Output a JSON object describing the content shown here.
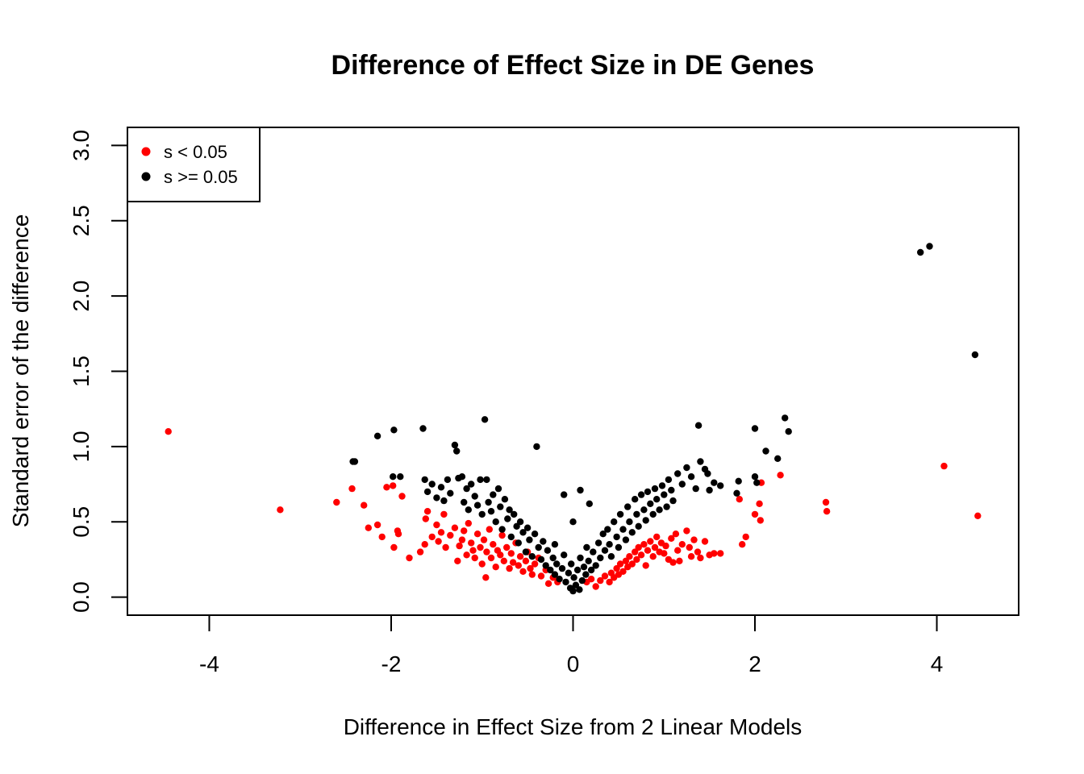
{
  "chart_data": {
    "type": "scatter",
    "title": "Difference of Effect Size in DE Genes",
    "xlabel": "Difference in Effect Size from 2 Linear Models",
    "ylabel": "Standard error of the difference",
    "xlim": [
      -4.9,
      4.9
    ],
    "ylim": [
      -0.12,
      3.12
    ],
    "xticks": [
      -4,
      -2,
      0,
      2,
      4
    ],
    "xtick_labels": [
      "-4",
      "-2",
      "0",
      "2",
      "4"
    ],
    "yticks": [
      0.0,
      0.5,
      1.0,
      1.5,
      2.0,
      2.5,
      3.0
    ],
    "ytick_labels": [
      "0.0",
      "0.5",
      "1.0",
      "1.5",
      "2.0",
      "2.5",
      "3.0"
    ],
    "grid": false,
    "legend": {
      "position": "top-left",
      "entries": [
        {
          "label": "s < 0.05",
          "color": "#ff0000"
        },
        {
          "label": "s >= 0.05",
          "color": "#000000"
        }
      ]
    },
    "series": [
      {
        "name": "s < 0.05",
        "color": "#ff0000",
        "points": [
          [
            -4.45,
            1.1
          ],
          [
            -3.22,
            0.58
          ],
          [
            -2.6,
            0.63
          ],
          [
            -2.43,
            0.72
          ],
          [
            -2.3,
            0.61
          ],
          [
            -2.25,
            0.46
          ],
          [
            -2.15,
            0.48
          ],
          [
            -2.1,
            0.4
          ],
          [
            -2.05,
            0.73
          ],
          [
            -1.98,
            0.74
          ],
          [
            -1.97,
            0.33
          ],
          [
            -1.93,
            0.44
          ],
          [
            -1.92,
            0.42
          ],
          [
            -1.88,
            0.67
          ],
          [
            -1.8,
            0.26
          ],
          [
            -1.68,
            0.3
          ],
          [
            -1.63,
            0.35
          ],
          [
            -1.62,
            0.52
          ],
          [
            -1.6,
            0.57
          ],
          [
            -1.55,
            0.4
          ],
          [
            -1.5,
            0.48
          ],
          [
            -1.48,
            0.37
          ],
          [
            -1.45,
            0.43
          ],
          [
            -1.42,
            0.55
          ],
          [
            -1.4,
            0.33
          ],
          [
            -1.35,
            0.41
          ],
          [
            -1.3,
            0.46
          ],
          [
            -1.27,
            0.24
          ],
          [
            -1.25,
            0.34
          ],
          [
            -1.22,
            0.38
          ],
          [
            -1.2,
            0.44
          ],
          [
            -1.17,
            0.28
          ],
          [
            -1.15,
            0.49
          ],
          [
            -1.12,
            0.36
          ],
          [
            -1.1,
            0.31
          ],
          [
            -1.08,
            0.26
          ],
          [
            -1.05,
            0.42
          ],
          [
            -1.02,
            0.33
          ],
          [
            -1.0,
            0.22
          ],
          [
            -0.98,
            0.38
          ],
          [
            -0.96,
            0.13
          ],
          [
            -0.95,
            0.3
          ],
          [
            -0.92,
            0.45
          ],
          [
            -0.9,
            0.26
          ],
          [
            -0.88,
            0.35
          ],
          [
            -0.85,
            0.2
          ],
          [
            -0.83,
            0.31
          ],
          [
            -0.8,
            0.28
          ],
          [
            -0.78,
            0.41
          ],
          [
            -0.76,
            0.24
          ],
          [
            -0.73,
            0.33
          ],
          [
            -0.7,
            0.19
          ],
          [
            -0.68,
            0.29
          ],
          [
            -0.66,
            0.23
          ],
          [
            -0.63,
            0.36
          ],
          [
            -0.6,
            0.21
          ],
          [
            -0.58,
            0.27
          ],
          [
            -0.55,
            0.17
          ],
          [
            -0.52,
            0.24
          ],
          [
            -0.5,
            0.3
          ],
          [
            -0.47,
            0.19
          ],
          [
            -0.45,
            0.15
          ],
          [
            -0.42,
            0.22
          ],
          [
            -0.38,
            0.26
          ],
          [
            -0.35,
            0.14
          ],
          [
            -0.3,
            0.18
          ],
          [
            -0.27,
            0.09
          ],
          [
            -0.22,
            0.13
          ],
          [
            -0.17,
            0.1
          ],
          [
            0.15,
            0.1
          ],
          [
            0.2,
            0.12
          ],
          [
            0.25,
            0.07
          ],
          [
            0.3,
            0.11
          ],
          [
            0.35,
            0.14
          ],
          [
            0.4,
            0.1
          ],
          [
            0.42,
            0.16
          ],
          [
            0.45,
            0.13
          ],
          [
            0.48,
            0.19
          ],
          [
            0.5,
            0.15
          ],
          [
            0.52,
            0.22
          ],
          [
            0.55,
            0.17
          ],
          [
            0.58,
            0.24
          ],
          [
            0.6,
            0.2
          ],
          [
            0.62,
            0.27
          ],
          [
            0.65,
            0.22
          ],
          [
            0.68,
            0.3
          ],
          [
            0.7,
            0.25
          ],
          [
            0.72,
            0.33
          ],
          [
            0.75,
            0.28
          ],
          [
            0.78,
            0.35
          ],
          [
            0.8,
            0.21
          ],
          [
            0.82,
            0.31
          ],
          [
            0.85,
            0.37
          ],
          [
            0.88,
            0.27
          ],
          [
            0.9,
            0.33
          ],
          [
            0.92,
            0.4
          ],
          [
            0.95,
            0.3
          ],
          [
            0.97,
            0.36
          ],
          [
            1.0,
            0.29
          ],
          [
            1.02,
            0.34
          ],
          [
            1.05,
            0.25
          ],
          [
            1.08,
            0.39
          ],
          [
            1.1,
            0.23
          ],
          [
            1.13,
            0.42
          ],
          [
            1.15,
            0.31
          ],
          [
            1.17,
            0.24
          ],
          [
            1.2,
            0.35
          ],
          [
            1.25,
            0.44
          ],
          [
            1.28,
            0.33
          ],
          [
            1.3,
            0.27
          ],
          [
            1.33,
            0.38
          ],
          [
            1.37,
            0.3
          ],
          [
            1.4,
            0.26
          ],
          [
            1.45,
            0.37
          ],
          [
            1.5,
            0.28
          ],
          [
            1.55,
            0.29
          ],
          [
            1.62,
            0.29
          ],
          [
            1.83,
            0.65
          ],
          [
            1.86,
            0.35
          ],
          [
            1.9,
            0.4
          ],
          [
            2.0,
            0.55
          ],
          [
            2.05,
            0.62
          ],
          [
            2.06,
            0.51
          ],
          [
            2.07,
            0.76
          ],
          [
            2.28,
            0.81
          ],
          [
            2.78,
            0.63
          ],
          [
            2.79,
            0.57
          ],
          [
            4.08,
            0.87
          ],
          [
            4.45,
            0.54
          ]
        ]
      },
      {
        "name": "s >= 0.05",
        "color": "#000000",
        "points": [
          [
            -2.42,
            0.9
          ],
          [
            -2.4,
            0.9
          ],
          [
            -2.15,
            1.07
          ],
          [
            -1.97,
            1.11
          ],
          [
            -1.98,
            0.8
          ],
          [
            -1.9,
            0.8
          ],
          [
            -1.65,
            1.12
          ],
          [
            -1.63,
            0.78
          ],
          [
            -1.6,
            0.7
          ],
          [
            -1.55,
            0.75
          ],
          [
            -1.5,
            0.66
          ],
          [
            -1.45,
            0.73
          ],
          [
            -1.42,
            0.64
          ],
          [
            -1.38,
            0.78
          ],
          [
            -1.35,
            0.69
          ],
          [
            -1.3,
            1.01
          ],
          [
            -1.28,
            0.97
          ],
          [
            -1.26,
            0.79
          ],
          [
            -1.22,
            0.8
          ],
          [
            -1.2,
            0.63
          ],
          [
            -1.17,
            0.72
          ],
          [
            -1.15,
            0.58
          ],
          [
            -1.12,
            0.75
          ],
          [
            -1.08,
            0.67
          ],
          [
            -1.05,
            0.61
          ],
          [
            -1.02,
            0.78
          ],
          [
            -1.0,
            0.55
          ],
          [
            -0.97,
            1.18
          ],
          [
            -0.95,
            0.78
          ],
          [
            -0.93,
            0.63
          ],
          [
            -0.9,
            0.57
          ],
          [
            -0.88,
            0.68
          ],
          [
            -0.85,
            0.5
          ],
          [
            -0.82,
            0.72
          ],
          [
            -0.8,
            0.6
          ],
          [
            -0.78,
            0.45
          ],
          [
            -0.75,
            0.65
          ],
          [
            -0.72,
            0.52
          ],
          [
            -0.7,
            0.58
          ],
          [
            -0.68,
            0.4
          ],
          [
            -0.65,
            0.55
          ],
          [
            -0.62,
            0.47
          ],
          [
            -0.6,
            0.36
          ],
          [
            -0.58,
            0.5
          ],
          [
            -0.55,
            0.43
          ],
          [
            -0.52,
            0.3
          ],
          [
            -0.5,
            0.46
          ],
          [
            -0.48,
            0.38
          ],
          [
            -0.45,
            0.27
          ],
          [
            -0.42,
            0.42
          ],
          [
            -0.4,
            1.0
          ],
          [
            -0.38,
            0.33
          ],
          [
            -0.35,
            0.25
          ],
          [
            -0.33,
            0.37
          ],
          [
            -0.3,
            0.21
          ],
          [
            -0.28,
            0.31
          ],
          [
            -0.25,
            0.18
          ],
          [
            -0.22,
            0.26
          ],
          [
            -0.2,
            0.15
          ],
          [
            -0.2,
            0.35
          ],
          [
            -0.18,
            0.22
          ],
          [
            -0.15,
            0.12
          ],
          [
            -0.12,
            0.19
          ],
          [
            -0.1,
            0.28
          ],
          [
            -0.08,
            0.1
          ],
          [
            -0.05,
            0.16
          ],
          [
            -0.03,
            0.06
          ],
          [
            -0.02,
            0.22
          ],
          [
            0.0,
            0.04
          ],
          [
            0.01,
            0.13
          ],
          [
            0.03,
            0.08
          ],
          [
            0.05,
            0.18
          ],
          [
            0.07,
            0.05
          ],
          [
            0.08,
            0.26
          ],
          [
            0.1,
            0.11
          ],
          [
            0.12,
            0.2
          ],
          [
            0.14,
            0.15
          ],
          [
            0.15,
            0.33
          ],
          [
            0.17,
            0.24
          ],
          [
            0.2,
            0.18
          ],
          [
            0.22,
            0.3
          ],
          [
            0.25,
            0.21
          ],
          [
            0.28,
            0.36
          ],
          [
            0.3,
            0.26
          ],
          [
            0.33,
            0.42
          ],
          [
            0.35,
            0.31
          ],
          [
            0.38,
            0.45
          ],
          [
            0.4,
            0.35
          ],
          [
            0.42,
            0.27
          ],
          [
            0.45,
            0.5
          ],
          [
            0.48,
            0.4
          ],
          [
            0.5,
            0.33
          ],
          [
            0.52,
            0.55
          ],
          [
            0.55,
            0.45
          ],
          [
            0.58,
            0.38
          ],
          [
            0.6,
            0.6
          ],
          [
            0.62,
            0.5
          ],
          [
            0.65,
            0.43
          ],
          [
            0.68,
            0.65
          ],
          [
            0.7,
            0.55
          ],
          [
            0.72,
            0.47
          ],
          [
            0.75,
            0.68
          ],
          [
            0.78,
            0.58
          ],
          [
            0.8,
            0.51
          ],
          [
            0.82,
            0.7
          ],
          [
            0.85,
            0.62
          ],
          [
            0.88,
            0.55
          ],
          [
            0.9,
            0.72
          ],
          [
            0.92,
            0.65
          ],
          [
            0.95,
            0.58
          ],
          [
            0.98,
            0.74
          ],
          [
            1.0,
            0.68
          ],
          [
            1.03,
            0.6
          ],
          [
            1.05,
            0.78
          ],
          [
            1.08,
            0.71
          ],
          [
            1.1,
            0.64
          ],
          [
            1.15,
            0.82
          ],
          [
            1.2,
            0.75
          ],
          [
            1.25,
            0.86
          ],
          [
            1.3,
            0.8
          ],
          [
            1.35,
            0.72
          ],
          [
            1.38,
            1.14
          ],
          [
            1.4,
            0.9
          ],
          [
            1.45,
            0.85
          ],
          [
            1.48,
            0.82
          ],
          [
            1.5,
            0.71
          ],
          [
            1.55,
            0.76
          ],
          [
            1.62,
            0.74
          ],
          [
            1.8,
            0.69
          ],
          [
            1.82,
            0.77
          ],
          [
            2.0,
            1.12
          ],
          [
            2.0,
            0.8
          ],
          [
            2.02,
            0.76
          ],
          [
            2.12,
            0.97
          ],
          [
            2.25,
            0.92
          ],
          [
            2.33,
            1.19
          ],
          [
            2.37,
            1.1
          ],
          [
            3.82,
            2.29
          ],
          [
            3.92,
            2.33
          ],
          [
            4.42,
            1.61
          ],
          [
            0.08,
            0.71
          ],
          [
            -0.1,
            0.68
          ],
          [
            0.18,
            0.62
          ],
          [
            0.0,
            0.5
          ]
        ]
      }
    ]
  }
}
